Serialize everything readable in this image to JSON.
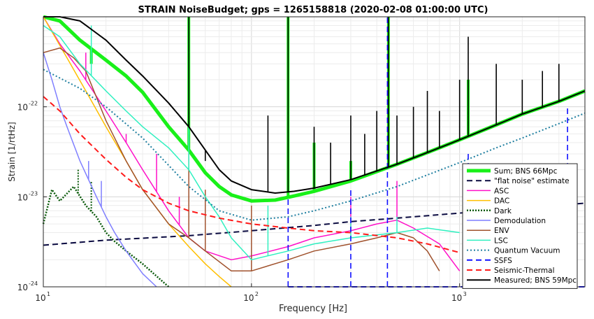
{
  "chart_data": {
    "type": "line",
    "title": "STRAIN NoiseBudget; gps = 1265158818 (2020-02-08 01:00:00 UTC)",
    "xlabel": "Frequency [Hz]",
    "ylabel": "Strain [1/rtHz]",
    "xscale": "log",
    "yscale": "log",
    "xlim": [
      10,
      4000
    ],
    "ylim": [
      1e-24,
      1e-21
    ],
    "grid": true,
    "legend_position": "bottom-right",
    "x_ticks": [
      {
        "value": 10,
        "label": "10",
        "sup": "1"
      },
      {
        "value": 100,
        "label": "10",
        "sup": "2"
      },
      {
        "value": 1000,
        "label": "10",
        "sup": "3"
      }
    ],
    "y_ticks": [
      {
        "value": 1e-24,
        "label": "10",
        "sup": "-24"
      },
      {
        "value": 1e-23,
        "label": "10",
        "sup": "-23"
      },
      {
        "value": 1e-22,
        "label": "10",
        "sup": "-22"
      }
    ],
    "series": [
      {
        "name": "Sum; BNS 66Mpc",
        "color": "#19f019",
        "width": 5,
        "dash": "none",
        "x": [
          10,
          12,
          15,
          20,
          25,
          30,
          40,
          50,
          60,
          70,
          80,
          100,
          130,
          160,
          200,
          300,
          500,
          700,
          1000,
          1500,
          2000,
          3000,
          4000
        ],
        "y": [
          1e-21,
          9e-22,
          5.5e-22,
          3.3e-22,
          2.2e-22,
          1.45e-22,
          6e-23,
          3.3e-23,
          1.85e-23,
          1.3e-23,
          1.05e-23,
          9e-24,
          9.2e-24,
          1.02e-23,
          1.15e-23,
          1.5e-23,
          2.3e-23,
          3.1e-23,
          4.3e-23,
          6.3e-23,
          8.3e-23,
          1.15e-22,
          1.5e-22
        ],
        "peaks": [
          [
            17,
            3e-22
          ],
          [
            50,
            2e-21
          ],
          [
            150,
            2e-21
          ],
          [
            200,
            4e-23
          ],
          [
            300,
            2.5e-23
          ],
          [
            455,
            2e-21
          ],
          [
            1100,
            2e-22
          ]
        ]
      },
      {
        "name": "\"flat noise\" estimate",
        "color": "#0a0a40",
        "width": 2,
        "dash": "8,5",
        "x": [
          10,
          20,
          50,
          100,
          200,
          300,
          500,
          1000,
          2000,
          4000
        ],
        "y": [
          2.9e-24,
          3.3e-24,
          3.7e-24,
          4.2e-24,
          4.8e-24,
          5.3e-24,
          5.8e-24,
          6.6e-24,
          7.5e-24,
          8.5e-24
        ]
      },
      {
        "name": "ASC",
        "color": "#ff10c8",
        "width": 1.5,
        "dash": "none",
        "x": [
          10,
          12,
          15,
          20,
          25,
          30,
          40,
          50,
          60,
          80,
          100,
          150,
          200,
          300,
          400,
          500,
          600,
          800,
          1000
        ],
        "y": [
          1e-21,
          5e-22,
          2.5e-22,
          9e-23,
          4e-23,
          2e-23,
          7e-24,
          3.5e-24,
          2.5e-24,
          2e-24,
          2.2e-24,
          2.8e-24,
          3.5e-24,
          4.2e-24,
          5e-24,
          5.5e-24,
          4.5e-24,
          3e-24,
          1.5e-24
        ],
        "peaks": [
          [
            16,
            4e-22
          ],
          [
            25,
            5e-23
          ],
          [
            35,
            3e-23
          ],
          [
            45,
            1e-23
          ],
          [
            300,
            1e-23
          ],
          [
            500,
            1.5e-23
          ]
        ]
      },
      {
        "name": "DAC",
        "color": "#ffbf00",
        "width": 1.5,
        "dash": "none",
        "x": [
          10,
          13,
          16,
          20,
          25,
          30,
          40,
          50,
          60,
          70,
          80
        ],
        "y": [
          1e-21,
          3.5e-22,
          1.5e-22,
          6e-23,
          2.5e-23,
          1.2e-23,
          5e-24,
          2.8e-24,
          1.8e-24,
          1.3e-24,
          1e-24
        ]
      },
      {
        "name": "Dark",
        "color": "#0a5a0a",
        "width": 2.5,
        "dash": "2,2",
        "x": [
          10,
          11,
          12,
          14,
          16,
          18,
          20,
          22,
          25,
          30,
          40
        ],
        "y": [
          5e-24,
          1.2e-23,
          9e-24,
          1.3e-23,
          8e-24,
          6e-24,
          4e-24,
          3.2e-24,
          2.5e-24,
          1.8e-24,
          1e-24
        ],
        "peaks": [
          [
            14.7,
            2e-23
          ],
          [
            17,
            1.5e-23
          ]
        ]
      },
      {
        "name": "Demodulation",
        "color": "#7f7fff",
        "width": 1.5,
        "dash": "none",
        "x": [
          10,
          11,
          12,
          13,
          15,
          18,
          20,
          22,
          25,
          30,
          35
        ],
        "y": [
          4e-22,
          2e-22,
          1e-22,
          6e-23,
          2.5e-23,
          1e-23,
          6e-24,
          4e-24,
          2.5e-24,
          1.4e-24,
          1e-24
        ],
        "peaks": [
          [
            16.5,
            2.5e-23
          ],
          [
            19,
            1.5e-23
          ]
        ]
      },
      {
        "name": "ENV",
        "color": "#a0522d",
        "width": 1.5,
        "dash": "none",
        "x": [
          10,
          12,
          14,
          16,
          20,
          25,
          30,
          40,
          50,
          60,
          80,
          100,
          150,
          200,
          300,
          400,
          500,
          600,
          700,
          800
        ],
        "y": [
          4e-22,
          4.5e-22,
          3.5e-22,
          2.5e-22,
          7e-23,
          2.5e-23,
          1.2e-23,
          5e-24,
          3.5e-24,
          2.5e-24,
          1.5e-24,
          1.5e-24,
          2e-24,
          2.5e-24,
          3e-24,
          3.5e-24,
          4e-24,
          3.5e-24,
          2.5e-24,
          1.5e-24
        ],
        "peaks": [
          [
            50,
            5e-23
          ],
          [
            60,
            1.2e-23
          ],
          [
            100,
            8e-24
          ]
        ]
      },
      {
        "name": "LSC",
        "color": "#30f0c0",
        "width": 1.5,
        "dash": "none",
        "x": [
          10,
          12,
          15,
          20,
          25,
          30,
          40,
          50,
          60,
          70,
          80,
          100,
          150,
          200,
          300,
          500,
          700,
          1000
        ],
        "y": [
          8e-22,
          6e-22,
          3e-22,
          1.5e-22,
          9e-23,
          6e-23,
          3.5e-23,
          2e-23,
          1e-23,
          6e-24,
          3.5e-24,
          2e-24,
          2.5e-24,
          3e-24,
          3.5e-24,
          4e-24,
          4.5e-24,
          4e-24
        ],
        "peaks": [
          [
            17,
            8e-22
          ],
          [
            50,
            1e-21
          ],
          [
            120,
            8e-24
          ],
          [
            300,
            6e-24
          ],
          [
            500,
            6e-24
          ]
        ]
      },
      {
        "name": "Quantum Vacuum",
        "color": "#1f7fa0",
        "width": 2,
        "dash": "2,3",
        "x": [
          10,
          15,
          20,
          30,
          50,
          70,
          100,
          150,
          200,
          300,
          500,
          700,
          1000,
          1500,
          2000,
          3000,
          4000
        ],
        "y": [
          2.6e-22,
          1.6e-22,
          1e-22,
          4.5e-23,
          1.3e-23,
          7e-24,
          5.5e-24,
          6e-24,
          7e-24,
          9e-24,
          1.3e-23,
          1.75e-23,
          2.4e-23,
          3.5e-23,
          4.5e-23,
          6.5e-23,
          8.5e-23
        ]
      },
      {
        "name": "SSFS",
        "color": "#1010ff",
        "width": 2,
        "dash": "8,5",
        "x": [
          150,
          300,
          500,
          1000,
          1100,
          3000,
          3300,
          4000
        ],
        "y": [
          1e-24,
          1e-24,
          1e-24,
          1e-24,
          1e-24,
          1e-24,
          1e-24,
          1e-24
        ],
        "peaks": [
          [
            150,
            1e-23
          ],
          [
            300,
            1.2e-23
          ],
          [
            450,
            1e-21
          ],
          [
            1100,
            3e-23
          ],
          [
            3300,
            1e-22
          ]
        ]
      },
      {
        "name": "Seismic-Thermal",
        "color": "#ff1a1a",
        "width": 2,
        "dash": "8,5",
        "x": [
          10,
          12,
          15,
          20,
          25,
          30,
          40,
          50,
          70,
          100,
          150,
          200,
          300,
          500,
          700,
          1000
        ],
        "y": [
          1.3e-22,
          9e-23,
          5e-23,
          2.6e-23,
          1.65e-23,
          1.2e-23,
          8.5e-24,
          7e-24,
          5.8e-24,
          5e-24,
          4.5e-24,
          4.2e-24,
          4e-24,
          3.5e-24,
          3e-24,
          2.4e-24
        ]
      },
      {
        "name": "Measured; BNS 59Mpc",
        "color": "#000000",
        "width": 2,
        "dash": "none",
        "x": [
          10,
          12,
          15,
          20,
          25,
          30,
          40,
          50,
          60,
          70,
          80,
          100,
          130,
          160,
          200,
          300,
          500,
          700,
          1000,
          1500,
          2000,
          3000,
          4000
        ],
        "y": [
          1e-21,
          1e-21,
          9e-22,
          5.5e-22,
          3.3e-22,
          2.2e-22,
          1.1e-22,
          6e-23,
          3.3e-23,
          2e-23,
          1.5e-23,
          1.2e-23,
          1.1e-23,
          1.15e-23,
          1.25e-23,
          1.55e-23,
          2.3e-23,
          3.1e-23,
          4.3e-23,
          6.3e-23,
          8.3e-23,
          1.15e-22,
          1.5e-22
        ],
        "peaks": [
          [
            50,
            2e-21
          ],
          [
            60,
            2.5e-23
          ],
          [
            120,
            8e-23
          ],
          [
            150,
            2e-21
          ],
          [
            200,
            6e-23
          ],
          [
            240,
            4e-23
          ],
          [
            300,
            8e-23
          ],
          [
            350,
            5e-23
          ],
          [
            400,
            9e-23
          ],
          [
            455,
            2e-21
          ],
          [
            500,
            8e-23
          ],
          [
            600,
            1e-22
          ],
          [
            700,
            1.5e-22
          ],
          [
            800,
            9e-23
          ],
          [
            1000,
            2e-22
          ],
          [
            1100,
            6e-22
          ],
          [
            1500,
            3e-22
          ],
          [
            2000,
            2e-22
          ],
          [
            2500,
            2.5e-22
          ],
          [
            3000,
            3e-22
          ]
        ]
      }
    ]
  }
}
